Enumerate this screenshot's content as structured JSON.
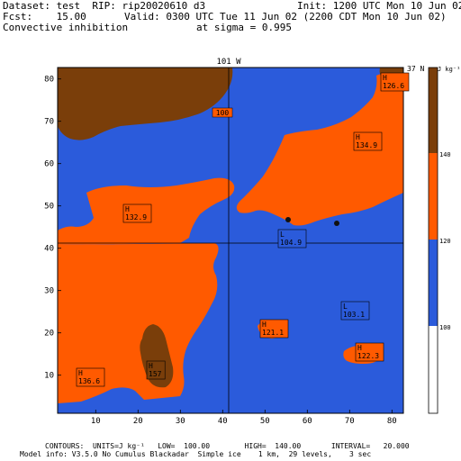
{
  "header": {
    "line1_left": "Dataset: test  RIP: rip20020610 d3",
    "line1_right": "Init: 1200 UTC Mon 10 Jun 02",
    "line2_left": "Fcst:    15.00",
    "line2_right": "Valid: 0300 UTC Tue 11 Jun 02 (2200 CDT Mon 10 Jun 02)",
    "line3_left": "Convective inhibition",
    "line3_right": "at sigma = 0.995"
  },
  "map": {
    "top_lon_label": "101 W",
    "right_lat_label": "37 N",
    "x_ticks": [
      "10",
      "20",
      "30",
      "40",
      "50",
      "60",
      "70",
      "80"
    ],
    "y_ticks": [
      "10",
      "20",
      "30",
      "40",
      "50",
      "60",
      "70",
      "80"
    ],
    "contour_labels": [
      "100"
    ],
    "extrema": [
      {
        "kind": "H",
        "value": "126.6"
      },
      {
        "kind": "H",
        "value": "134.9"
      },
      {
        "kind": "H",
        "value": "132.9"
      },
      {
        "kind": "L",
        "value": "104.9"
      },
      {
        "kind": "L",
        "value": "103.1"
      },
      {
        "kind": "H",
        "value": "121.1"
      },
      {
        "kind": "H",
        "value": "122.3"
      },
      {
        "kind": "H",
        "value": "157"
      },
      {
        "kind": "H",
        "value": "136.6"
      }
    ]
  },
  "legend": {
    "units": "J kg⁻¹",
    "levels": [
      "140",
      "120",
      "100"
    ],
    "colors": [
      "#7a3e0a",
      "#ff5a00",
      "#2b5bdb",
      "#ffffff"
    ]
  },
  "footer": {
    "line1": "CONTOURS:  UNITS=J kg⁻¹   LOW=  100.00        HIGH=  140.00       INTERVAL=   20.000",
    "line2": "Model info: V3.5.0 No Cumulus Blackadar  Simple ice    1 km,  29 levels,    3 sec"
  },
  "colors": {
    "brown": "#7a3e0a",
    "orange": "#ff5a00",
    "blue": "#2b5bdb"
  }
}
